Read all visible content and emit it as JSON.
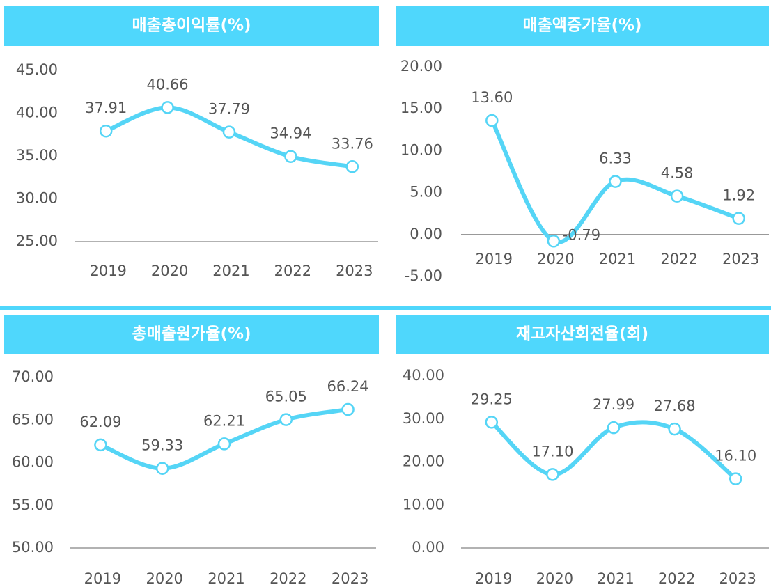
{
  "chart_data": [
    {
      "type": "line",
      "title": "매출총이익률(%)",
      "categories": [
        "2019",
        "2020",
        "2021",
        "2022",
        "2023"
      ],
      "values": [
        37.91,
        40.66,
        37.79,
        34.94,
        33.76
      ],
      "value_labels": [
        "37.91",
        "40.66",
        "37.79",
        "34.94",
        "33.76"
      ],
      "color": "#55d5f6",
      "ylim": [
        25,
        45
      ],
      "yticks": [
        {
          "value": 25,
          "label": "25.00"
        },
        {
          "value": 30,
          "label": "30.00"
        },
        {
          "value": 35,
          "label": "35.00"
        },
        {
          "value": 40,
          "label": "40.00"
        },
        {
          "value": 45,
          "label": "45.00"
        }
      ]
    },
    {
      "type": "line",
      "title": "매출액증가율(%)",
      "categories": [
        "2019",
        "2020",
        "2021",
        "2022",
        "2023"
      ],
      "values": [
        13.6,
        -0.79,
        6.33,
        4.58,
        1.92
      ],
      "value_labels": [
        "13.60",
        "-0.79",
        "6.33",
        "4.58",
        "1.92"
      ],
      "color": "#55d5f6",
      "ylim": [
        -5,
        20
      ],
      "yticks": [
        {
          "value": -5,
          "label": "-5.00"
        },
        {
          "value": 0,
          "label": "0.00"
        },
        {
          "value": 5,
          "label": "5.00"
        },
        {
          "value": 10,
          "label": "10.00"
        },
        {
          "value": 15,
          "label": "15.00"
        },
        {
          "value": 20,
          "label": "20.00"
        }
      ]
    },
    {
      "type": "line",
      "title": "총매출원가율(%)",
      "categories": [
        "2019",
        "2020",
        "2021",
        "2022",
        "2023"
      ],
      "values": [
        62.09,
        59.33,
        62.21,
        65.05,
        66.24
      ],
      "value_labels": [
        "62.09",
        "59.33",
        "62.21",
        "65.05",
        "66.24"
      ],
      "color": "#55d5f6",
      "ylim": [
        50,
        70
      ],
      "yticks": [
        {
          "value": 50,
          "label": "50.00"
        },
        {
          "value": 55,
          "label": "55.00"
        },
        {
          "value": 60,
          "label": "60.00"
        },
        {
          "value": 65,
          "label": "65.00"
        },
        {
          "value": 70,
          "label": "70.00"
        }
      ]
    },
    {
      "type": "line",
      "title": "재고자산회전율(회)",
      "categories": [
        "2019",
        "2020",
        "2021",
        "2022",
        "2023"
      ],
      "values": [
        29.25,
        17.1,
        27.99,
        27.68,
        16.1
      ],
      "value_labels": [
        "29.25",
        "17.10",
        "27.99",
        "27.68",
        "16.10"
      ],
      "color": "#55d5f6",
      "ylim": [
        0,
        40
      ],
      "yticks": [
        {
          "value": 0,
          "label": "0.00"
        },
        {
          "value": 10,
          "label": "10.00"
        },
        {
          "value": 20,
          "label": "20.00"
        },
        {
          "value": 30,
          "label": "30.00"
        },
        {
          "value": 40,
          "label": "40.00"
        }
      ]
    }
  ]
}
